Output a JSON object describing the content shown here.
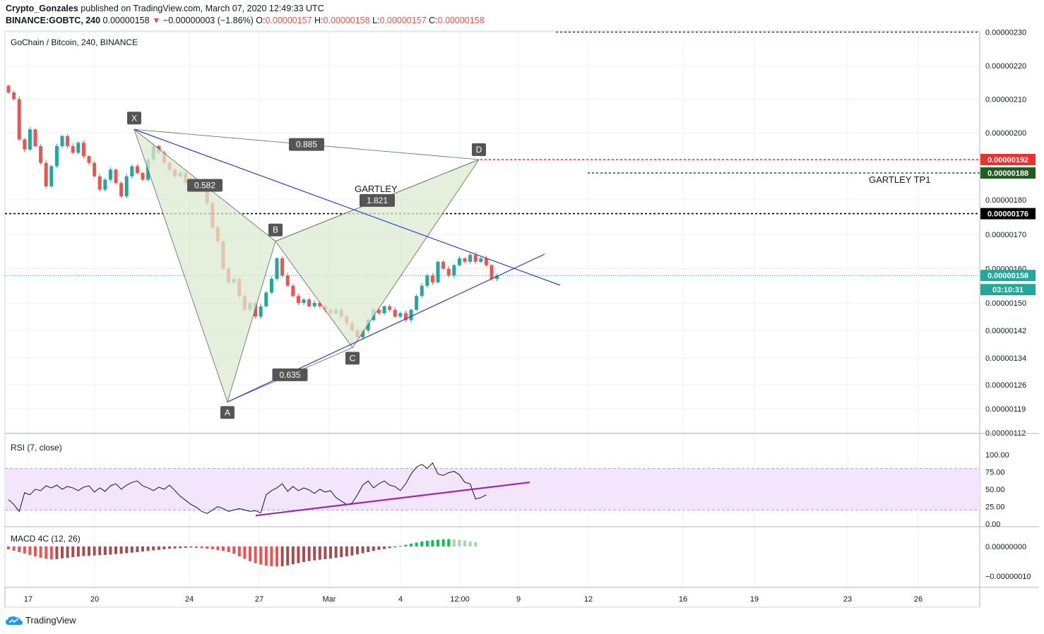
{
  "header": {
    "author": "Crypto_Gonzales",
    "published": "published on TradingView.com, March 07, 2020 12:49:33 UTC",
    "symbol": "BINANCE:GOBTC, 240",
    "last": "0.00000158",
    "change": "−0.00000003 (−1.86%)",
    "o_label": "O:",
    "o_value": "0.00000157",
    "h_label": "H:",
    "h_value": "0.00000158",
    "l_label": "L:",
    "l_value": "0.00000157",
    "c_label": "C:",
    "c_value": "0.00000158"
  },
  "footer": {
    "brand": "TradingView"
  },
  "colors": {
    "up": "#26a69a",
    "down": "#ef5350",
    "pattern_fill": "#dcebd0",
    "trendline": "#2e3fd6",
    "rsi": "#9c27b0"
  },
  "chart_data": [
    {
      "type": "candlestick",
      "title": "GoChain / Bitcoin, 240, BINANCE",
      "x_tick_labels": [
        "17",
        "20",
        "24",
        "27",
        "Mar",
        "4",
        "12:00",
        "9",
        "12",
        "16",
        "19",
        "23",
        "26"
      ],
      "y_tick_labels": [
        "0.00000230",
        "0.00000220",
        "0.00000210",
        "0.00000200",
        "0.00000180",
        "0.00000170",
        "0.00000160",
        "0.00000150",
        "0.00000142",
        "0.00000134",
        "0.00000126",
        "0.00000119",
        "0.00000112"
      ],
      "price_tags": [
        {
          "value": "0.00000192",
          "color": "#e8322f"
        },
        {
          "value": "0.00000188",
          "color": "#1e5e1e"
        },
        {
          "value": "0.00000176",
          "color": "#000000"
        },
        {
          "value": "0.00000158",
          "color": "#26a69a"
        },
        {
          "value": "03:10:31",
          "color": "#26a69a"
        }
      ],
      "horizontal_lines": [
        {
          "price": 2.3e-06,
          "style": "dashed",
          "color": "#1e5e1e"
        },
        {
          "price": 1.92e-06,
          "style": "dashed",
          "color": "#e8322f"
        },
        {
          "price": 1.88e-06,
          "style": "dashed",
          "color": "#1e5e1e",
          "label": "GARTLEY TP1"
        },
        {
          "price": 1.76e-06,
          "style": "dashed",
          "color": "#000000"
        },
        {
          "price": 1.58e-06,
          "style": "dotted",
          "color": "#26a69a"
        }
      ],
      "pattern": {
        "name": "GARTLEY",
        "points": [
          {
            "label": "X",
            "price": 2.01e-06
          },
          {
            "label": "A",
            "price": 1.21e-06
          },
          {
            "label": "B",
            "price": 1.68e-06
          },
          {
            "label": "C",
            "price": 1.37e-06
          },
          {
            "label": "D",
            "price": 1.92e-06
          }
        ],
        "ratios": [
          "0.885",
          "0.582",
          "0.635",
          "1.821"
        ]
      },
      "close_series": [
        2.12e-06,
        2.1e-06,
        1.98e-06,
        1.95e-06,
        2.01e-06,
        1.96e-06,
        1.91e-06,
        1.84e-06,
        1.9e-06,
        1.96e-06,
        1.99e-06,
        1.96e-06,
        1.94e-06,
        1.97e-06,
        1.93e-06,
        1.91e-06,
        1.87e-06,
        1.83e-06,
        1.86e-06,
        1.89e-06,
        1.85e-06,
        1.81e-06,
        1.87e-06,
        1.9e-06,
        1.88e-06,
        1.86e-06,
        1.92e-06,
        1.96e-06,
        1.94e-06,
        1.91e-06,
        1.89e-06,
        1.87e-06,
        1.88e-06,
        1.85e-06,
        1.86e-06,
        1.84e-06,
        1.83e-06,
        1.79e-06,
        1.72e-06,
        1.68e-06,
        1.6e-06,
        1.56e-06,
        1.57e-06,
        1.52e-06,
        1.48e-06,
        1.5e-06,
        1.46e-06,
        1.49e-06,
        1.53e-06,
        1.57e-06,
        1.63e-06,
        1.58e-06,
        1.55e-06,
        1.52e-06,
        1.5e-06,
        1.51e-06,
        1.49e-06,
        1.5e-06,
        1.49e-06,
        1.48e-06,
        1.47e-06,
        1.48e-06,
        1.46e-06,
        1.44e-06,
        1.42e-06,
        1.4e-06,
        1.42e-06,
        1.45e-06,
        1.48e-06,
        1.47e-06,
        1.49e-06,
        1.48e-06,
        1.46e-06,
        1.47e-06,
        1.45e-06,
        1.48e-06,
        1.52e-06,
        1.55e-06,
        1.58e-06,
        1.56e-06,
        1.62e-06,
        1.6e-06,
        1.58e-06,
        1.61e-06,
        1.63e-06,
        1.62e-06,
        1.64e-06,
        1.62e-06,
        1.63e-06,
        1.61e-06,
        1.57e-06,
        1.58e-06
      ]
    },
    {
      "type": "line",
      "title": "RSI (7, close)",
      "y_tick_labels": [
        "100.00",
        "75.00",
        "50.00",
        "25.00",
        "0.00"
      ],
      "band": [
        20,
        80
      ],
      "values": [
        35,
        28,
        18,
        45,
        42,
        50,
        48,
        55,
        52,
        56,
        50,
        54,
        52,
        48,
        53,
        55,
        46,
        52,
        47,
        55,
        58,
        50,
        56,
        60,
        62,
        55,
        52,
        48,
        53,
        50,
        56,
        48,
        40,
        34,
        28,
        24,
        18,
        15,
        20,
        25,
        22,
        18,
        20,
        22,
        20,
        18,
        19,
        16,
        42,
        48,
        52,
        58,
        47,
        54,
        48,
        52,
        49,
        44,
        50,
        46,
        48,
        38,
        33,
        28,
        30,
        42,
        56,
        62,
        52,
        58,
        62,
        56,
        54,
        48,
        58,
        72,
        82,
        86,
        80,
        88,
        72,
        70,
        74,
        76,
        71,
        60,
        58,
        36,
        38,
        42
      ],
      "support_line": [
        12,
        60
      ]
    },
    {
      "type": "bar",
      "title": "MACD 4C (12, 26)",
      "y_tick_labels": [
        "0.00000000",
        "−0.00000010"
      ],
      "values": [
        -1.0,
        -1.5,
        -2.0,
        -2.5,
        -3.0,
        -3.5,
        -4.0,
        -4.4,
        -4.6,
        -4.5,
        -4.2,
        -4.0,
        -3.8,
        -3.6,
        -3.4,
        -3.3,
        -3.2,
        -3.1,
        -3.0,
        -2.9,
        -2.7,
        -2.6,
        -2.4,
        -2.2,
        -2.0,
        -1.8,
        -1.6,
        -1.4,
        -1.2,
        -1.0,
        -0.8,
        -0.7,
        -0.6,
        -0.5,
        -0.4,
        -0.5,
        -0.6,
        -0.8,
        -1.0,
        -1.3,
        -1.6,
        -2.0,
        -2.6,
        -3.5,
        -4.4,
        -5.2,
        -5.9,
        -6.4,
        -6.8,
        -7.0,
        -7.1,
        -7.0,
        -6.7,
        -6.3,
        -5.9,
        -5.5,
        -5.2,
        -4.9,
        -4.7,
        -4.5,
        -4.3,
        -4.0,
        -3.8,
        -3.5,
        -3.2,
        -2.8,
        -2.4,
        -2.0,
        -1.6,
        -1.2,
        -0.9,
        -0.6,
        -0.3,
        0.2,
        0.6,
        1.0,
        1.4,
        1.8,
        2.0,
        2.2,
        2.4,
        2.5,
        2.6,
        2.5,
        2.3,
        2.1,
        1.8,
        1.5
      ]
    }
  ]
}
